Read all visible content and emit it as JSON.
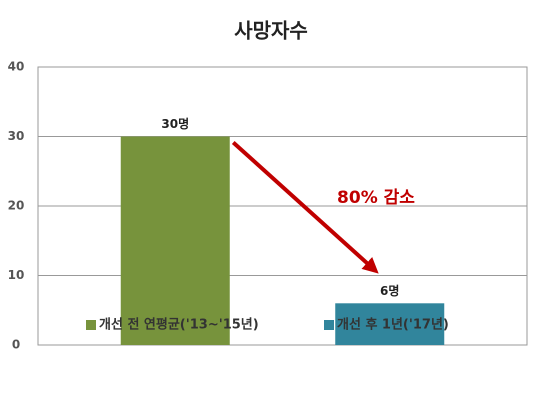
{
  "chart_data": {
    "type": "bar",
    "title": "사망자수",
    "categories": [
      null,
      null
    ],
    "series": [
      {
        "name": "개선 전 연평균('13~'15년)",
        "color": "#77933c",
        "values": [
          30,
          null
        ],
        "value_labels": [
          "30명",
          null
        ]
      },
      {
        "name": "개선 후 1년('17년)",
        "color": "#31859c",
        "values": [
          null,
          6
        ],
        "value_labels": [
          null,
          "6명"
        ]
      }
    ],
    "annotation": "80% 감소",
    "annotation_color": "#c00000",
    "ylim": [
      0,
      40
    ],
    "yticks": [
      0,
      10,
      20,
      30,
      40
    ],
    "grid": true
  }
}
